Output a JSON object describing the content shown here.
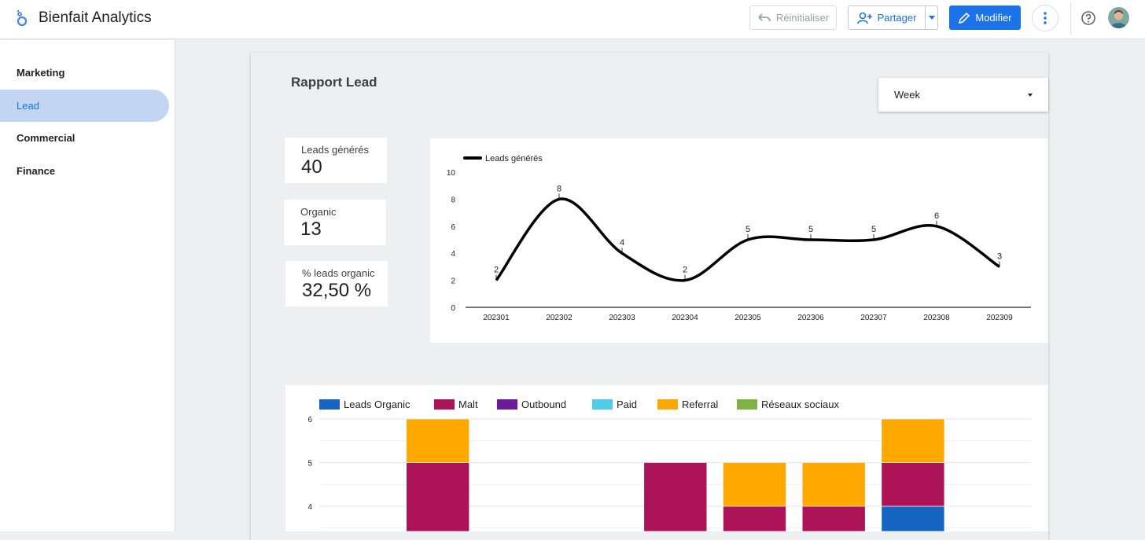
{
  "app": {
    "title": "Bienfait Analytics"
  },
  "toolbar": {
    "reset_label": "Réinitialiser",
    "share_label": "Partager",
    "edit_label": "Modifier"
  },
  "sidebar": {
    "items": [
      {
        "label": "Marketing",
        "active": false
      },
      {
        "label": "Lead",
        "active": true
      },
      {
        "label": "Commercial",
        "active": false
      },
      {
        "label": "Finance",
        "active": false
      }
    ]
  },
  "report": {
    "title": "Rapport Lead",
    "period_select": {
      "value": "Week"
    }
  },
  "kpis": [
    {
      "label": "Leads générés",
      "value": "40"
    },
    {
      "label": "Organic",
      "value": "13"
    },
    {
      "label": "% leads organic",
      "value": "32,50 %"
    }
  ],
  "colors": {
    "accent": "#1a73e8",
    "organic": "#1565c0",
    "malt": "#ad1457",
    "outbound": "#6a1b9a",
    "paid": "#4ecde6",
    "referral": "#ffa800",
    "reseaux": "#7cb342"
  },
  "chart_data": [
    {
      "type": "line",
      "series": [
        {
          "name": "Leads générés",
          "values": [
            2,
            8,
            4,
            2,
            5,
            5,
            5,
            6,
            3
          ]
        }
      ],
      "categories": [
        "202301",
        "202302",
        "202303",
        "202304",
        "202305",
        "202306",
        "202307",
        "202308",
        "202309"
      ],
      "ylim": [
        0,
        10
      ],
      "yticks": [
        "0",
        "2",
        "4",
        "6",
        "8",
        "10"
      ],
      "legend": "top-left",
      "data_labels": true
    },
    {
      "type": "bar",
      "stacked": true,
      "legend": "top-left",
      "legend_entries": [
        "Leads Organic",
        "Malt",
        "Outbound",
        "Paid",
        "Referral",
        "Réseaux sociaux"
      ],
      "ylim_visible": [
        3.5,
        6
      ],
      "yticks": [
        "4",
        "5",
        "6"
      ],
      "bars": [
        {
          "segments": []
        },
        {
          "segments": [
            {
              "series": "Malt",
              "value": 5
            },
            {
              "series": "Referral",
              "value": 1
            }
          ]
        },
        {
          "segments": []
        },
        {
          "segments": []
        },
        {
          "segments": [
            {
              "series": "Malt",
              "value": 5
            }
          ]
        },
        {
          "segments": [
            {
              "series": "Malt",
              "value": 4
            },
            {
              "series": "Referral",
              "value": 1
            }
          ]
        },
        {
          "segments": [
            {
              "series": "Malt",
              "value": 4
            },
            {
              "series": "Referral",
              "value": 1
            }
          ]
        },
        {
          "segments": [
            {
              "series": "Leads Organic",
              "value": 4
            },
            {
              "series": "Malt",
              "value": 1
            },
            {
              "series": "Referral",
              "value": 1
            }
          ]
        }
      ]
    }
  ]
}
